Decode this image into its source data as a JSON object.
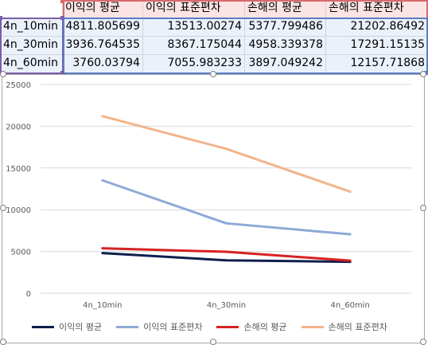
{
  "table": {
    "headers": [
      "이익의 평균",
      "이익의 표준편차",
      "손해의 평균",
      "손해의 표준편차"
    ],
    "rows": [
      {
        "label": "4n_10min",
        "values": [
          "4811.805699",
          "13513.00274",
          "5377.799486",
          "21202.86492"
        ]
      },
      {
        "label": "4n_30min",
        "values": [
          "3936.764535",
          "8367.175044",
          "4958.339378",
          "17291.15135"
        ]
      },
      {
        "label": "4n_60min",
        "values": [
          "3760.03794",
          "7055.983233",
          "3897.049242",
          "12157.71868"
        ]
      }
    ]
  },
  "colors": {
    "header_bg": "#fce4e4",
    "cell_bg": "#eaf1fb",
    "series": [
      "#0f1f4d",
      "#8eaad6",
      "#d62222",
      "#f2b48c"
    ]
  },
  "chart_data": {
    "type": "line",
    "categories": [
      "4n_10min",
      "4n_30min",
      "4n_60min"
    ],
    "series": [
      {
        "name": "이익의 평균",
        "values": [
          4811.805699,
          3936.764535,
          3760.03794
        ]
      },
      {
        "name": "이익의 표준편차",
        "values": [
          13513.00274,
          8367.175044,
          7055.983233
        ]
      },
      {
        "name": "손해의 평균",
        "values": [
          5377.799486,
          4958.339378,
          3897.049242
        ]
      },
      {
        "name": "손해의 표준편차",
        "values": [
          21202.86492,
          17291.15135,
          12157.71868
        ]
      }
    ],
    "ylim": [
      0,
      25000
    ],
    "yticks": [
      "0",
      "5000",
      "10000",
      "15000",
      "20000",
      "25000"
    ],
    "grid": true,
    "legend": "bottom"
  }
}
